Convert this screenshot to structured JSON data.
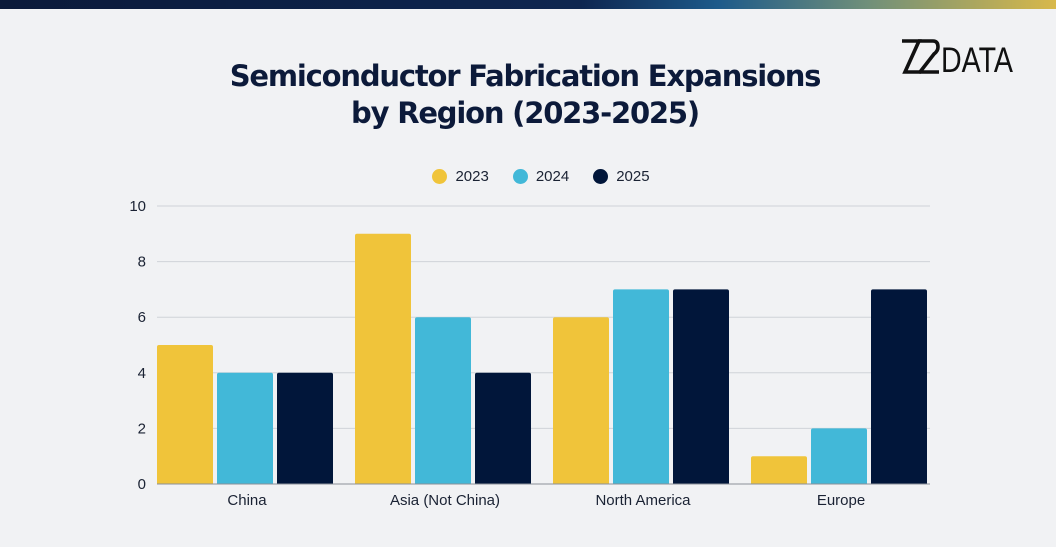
{
  "header": {
    "title_line1": "Semiconductor Fabrication Expansions",
    "title_line2": "by Region (2023-2025)",
    "logo_text": "DATA"
  },
  "colors": {
    "s2023": "#f0c43a",
    "s2024": "#42b8d8",
    "s2025": "#01163a",
    "grid": "#cfd3d8",
    "background": "#f1f2f4"
  },
  "chart_data": {
    "type": "bar",
    "title": "Semiconductor Fabrication Expansions by Region (2023-2025)",
    "categories": [
      "China",
      "Asia (Not China)",
      "North America",
      "Europe"
    ],
    "series": [
      {
        "name": "2023",
        "values": [
          5,
          9,
          6,
          1
        ]
      },
      {
        "name": "2024",
        "values": [
          4,
          6,
          7,
          2
        ]
      },
      {
        "name": "2025",
        "values": [
          4,
          4,
          7,
          7
        ]
      }
    ],
    "yticks": [
      0,
      2,
      4,
      6,
      8,
      10
    ],
    "ylim": [
      0,
      10
    ],
    "xlabel": "",
    "ylabel": "",
    "legend_position": "top-center",
    "grid": true
  }
}
